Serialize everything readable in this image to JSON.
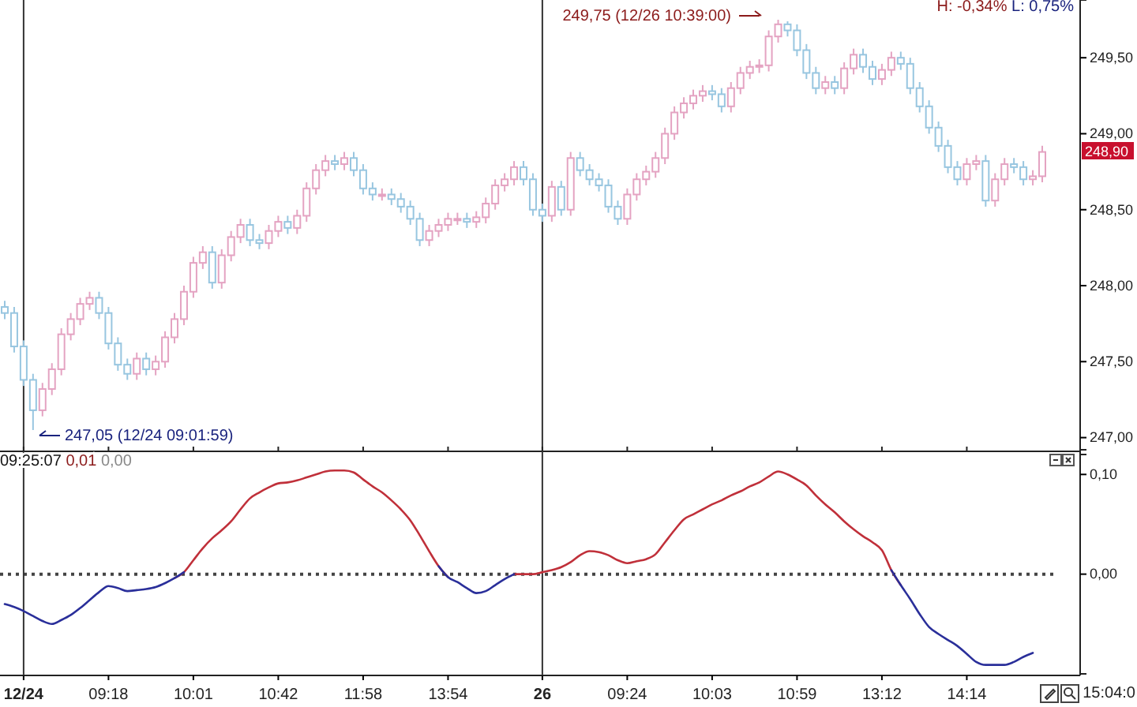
{
  "chart_data": [
    {
      "type": "candlestick",
      "categories": [
        null,
        null,
        "12/24",
        null,
        null,
        null,
        null,
        null,
        null,
        null,
        null,
        "09:18",
        null,
        null,
        null,
        null,
        null,
        null,
        null,
        null,
        "10:01",
        null,
        null,
        null,
        null,
        null,
        null,
        null,
        null,
        "10:42",
        null,
        null,
        null,
        null,
        null,
        null,
        null,
        null,
        "11:58",
        null,
        null,
        null,
        null,
        null,
        null,
        null,
        null,
        "13:54",
        null,
        null,
        null,
        null,
        null,
        null,
        null,
        null,
        null,
        "26",
        null,
        null,
        null,
        null,
        null,
        null,
        null,
        null,
        "09:24",
        null,
        null,
        null,
        null,
        null,
        null,
        null,
        null,
        "10:03",
        null,
        null,
        null,
        null,
        null,
        null,
        null,
        null,
        "10:59",
        null,
        null,
        null,
        null,
        null,
        null,
        null,
        null,
        "13:12",
        null,
        null,
        null,
        null,
        null,
        null,
        null,
        null,
        "14:14",
        null,
        null,
        null,
        null,
        null,
        null,
        null,
        null
      ],
      "ohlc": [
        [
          247.86,
          247.9,
          247.78,
          247.82
        ],
        [
          247.82,
          247.86,
          247.56,
          247.6
        ],
        [
          247.6,
          247.64,
          247.34,
          247.38
        ],
        [
          247.38,
          247.42,
          247.05,
          247.18
        ],
        [
          247.18,
          247.36,
          247.14,
          247.32
        ],
        [
          247.32,
          247.49,
          247.28,
          247.45
        ],
        [
          247.45,
          247.72,
          247.41,
          247.68
        ],
        [
          247.68,
          247.82,
          247.64,
          247.78
        ],
        [
          247.78,
          247.92,
          247.74,
          247.88
        ],
        [
          247.88,
          247.96,
          247.84,
          247.92
        ],
        [
          247.92,
          247.96,
          247.78,
          247.82
        ],
        [
          247.82,
          247.86,
          247.58,
          247.62
        ],
        [
          247.62,
          247.66,
          247.44,
          247.48
        ],
        [
          247.48,
          247.52,
          247.38,
          247.42
        ],
        [
          247.42,
          247.56,
          247.38,
          247.52
        ],
        [
          247.52,
          247.56,
          247.41,
          247.45
        ],
        [
          247.45,
          247.54,
          247.41,
          247.5
        ],
        [
          247.5,
          247.7,
          247.46,
          247.66
        ],
        [
          247.66,
          247.82,
          247.62,
          247.78
        ],
        [
          247.78,
          248.0,
          247.74,
          247.96
        ],
        [
          247.96,
          248.19,
          247.92,
          248.15
        ],
        [
          248.15,
          248.26,
          248.11,
          248.22
        ],
        [
          248.22,
          248.26,
          247.98,
          248.02
        ],
        [
          248.02,
          248.24,
          247.98,
          248.2
        ],
        [
          248.2,
          248.36,
          248.16,
          248.32
        ],
        [
          248.32,
          248.44,
          248.28,
          248.4
        ],
        [
          248.4,
          248.44,
          248.26,
          248.3
        ],
        [
          248.3,
          248.34,
          248.24,
          248.28
        ],
        [
          248.28,
          248.4,
          248.24,
          248.36
        ],
        [
          248.36,
          248.46,
          248.32,
          248.42
        ],
        [
          248.42,
          248.46,
          248.34,
          248.38
        ],
        [
          248.38,
          248.5,
          248.34,
          248.46
        ],
        [
          248.46,
          248.68,
          248.42,
          248.64
        ],
        [
          248.64,
          248.8,
          248.6,
          248.76
        ],
        [
          248.76,
          248.86,
          248.72,
          248.82
        ],
        [
          248.82,
          248.86,
          248.76,
          248.8
        ],
        [
          248.8,
          248.88,
          248.76,
          248.84
        ],
        [
          248.84,
          248.88,
          248.72,
          248.76
        ],
        [
          248.76,
          248.8,
          248.6,
          248.64
        ],
        [
          248.64,
          248.68,
          248.56,
          248.6
        ],
        [
          248.6,
          248.64,
          248.56,
          248.6
        ],
        [
          248.6,
          248.64,
          248.53,
          248.57
        ],
        [
          248.57,
          248.61,
          248.48,
          248.52
        ],
        [
          248.52,
          248.56,
          248.4,
          248.44
        ],
        [
          248.44,
          248.48,
          248.26,
          248.3
        ],
        [
          248.3,
          248.4,
          248.26,
          248.36
        ],
        [
          248.36,
          248.44,
          248.32,
          248.4
        ],
        [
          248.4,
          248.48,
          248.36,
          248.44
        ],
        [
          248.44,
          248.48,
          248.4,
          248.44
        ],
        [
          248.44,
          248.48,
          248.38,
          248.42
        ],
        [
          248.42,
          248.49,
          248.38,
          248.45
        ],
        [
          248.45,
          248.58,
          248.41,
          248.54
        ],
        [
          248.54,
          248.7,
          248.5,
          248.66
        ],
        [
          248.66,
          248.74,
          248.62,
          248.7
        ],
        [
          248.7,
          248.82,
          248.66,
          248.78
        ],
        [
          248.78,
          248.82,
          248.66,
          248.7
        ],
        [
          248.7,
          248.74,
          248.46,
          248.5
        ],
        [
          248.5,
          248.54,
          248.42,
          248.46
        ],
        [
          248.46,
          248.69,
          248.42,
          248.65
        ],
        [
          248.65,
          248.69,
          248.46,
          248.5
        ],
        [
          248.5,
          248.88,
          248.46,
          248.84
        ],
        [
          248.84,
          248.88,
          248.72,
          248.76
        ],
        [
          248.76,
          248.8,
          248.66,
          248.7
        ],
        [
          248.7,
          248.74,
          248.62,
          248.66
        ],
        [
          248.66,
          248.7,
          248.48,
          248.52
        ],
        [
          248.52,
          248.56,
          248.4,
          248.44
        ],
        [
          248.44,
          248.64,
          248.4,
          248.6
        ],
        [
          248.6,
          248.74,
          248.56,
          248.7
        ],
        [
          248.7,
          248.79,
          248.66,
          248.75
        ],
        [
          248.75,
          248.88,
          248.71,
          248.84
        ],
        [
          248.84,
          249.04,
          248.8,
          249.0
        ],
        [
          249.0,
          249.18,
          248.96,
          249.14
        ],
        [
          249.14,
          249.24,
          249.1,
          249.2
        ],
        [
          249.2,
          249.29,
          249.16,
          249.25
        ],
        [
          249.25,
          249.32,
          249.21,
          249.28
        ],
        [
          249.28,
          249.32,
          249.22,
          249.26
        ],
        [
          249.26,
          249.3,
          249.14,
          249.18
        ],
        [
          249.18,
          249.34,
          249.14,
          249.3
        ],
        [
          249.3,
          249.44,
          249.26,
          249.4
        ],
        [
          249.4,
          249.48,
          249.36,
          249.44
        ],
        [
          249.44,
          249.49,
          249.4,
          249.45
        ],
        [
          249.45,
          249.68,
          249.41,
          249.64
        ],
        [
          249.64,
          249.75,
          249.6,
          249.72
        ],
        [
          249.72,
          249.74,
          249.64,
          249.68
        ],
        [
          249.68,
          249.72,
          249.51,
          249.55
        ],
        [
          249.55,
          249.59,
          249.36,
          249.4
        ],
        [
          249.4,
          249.44,
          249.26,
          249.3
        ],
        [
          249.3,
          249.38,
          249.26,
          249.34
        ],
        [
          249.34,
          249.38,
          249.26,
          249.3
        ],
        [
          249.3,
          249.47,
          249.26,
          249.43
        ],
        [
          249.43,
          249.56,
          249.39,
          249.52
        ],
        [
          249.52,
          249.56,
          249.4,
          249.44
        ],
        [
          249.44,
          249.48,
          249.32,
          249.36
        ],
        [
          249.36,
          249.46,
          249.32,
          249.42
        ],
        [
          249.42,
          249.54,
          249.38,
          249.5
        ],
        [
          249.5,
          249.54,
          249.42,
          249.46
        ],
        [
          249.46,
          249.5,
          249.26,
          249.3
        ],
        [
          249.3,
          249.34,
          249.14,
          249.18
        ],
        [
          249.18,
          249.22,
          249.0,
          249.04
        ],
        [
          249.04,
          249.08,
          248.88,
          248.92
        ],
        [
          248.92,
          248.96,
          248.74,
          248.78
        ],
        [
          248.78,
          248.82,
          248.66,
          248.7
        ],
        [
          248.7,
          248.84,
          248.66,
          248.8
        ],
        [
          248.8,
          248.86,
          248.76,
          248.82
        ],
        [
          248.82,
          248.86,
          248.52,
          248.56
        ],
        [
          248.56,
          248.74,
          248.52,
          248.7
        ],
        [
          248.7,
          248.84,
          248.66,
          248.8
        ],
        [
          248.8,
          248.84,
          248.74,
          248.78
        ],
        [
          248.78,
          248.82,
          248.66,
          248.7
        ],
        [
          248.7,
          248.76,
          248.66,
          248.72
        ],
        [
          248.72,
          248.92,
          248.68,
          248.88
        ]
      ],
      "colors": [
        "#98c6e0",
        "#98c6e0",
        "#98c6e0",
        "#98c6e0",
        "#e4a3c2",
        "#e4a3c2",
        "#e4a3c2",
        "#e4a3c2",
        "#e4a3c2",
        "#e4a3c2",
        "#98c6e0",
        "#98c6e0",
        "#98c6e0",
        "#98c6e0",
        "#e4a3c2",
        "#98c6e0",
        "#e4a3c2",
        "#e4a3c2",
        "#e4a3c2",
        "#e4a3c2",
        "#e4a3c2",
        "#e4a3c2",
        "#98c6e0",
        "#e4a3c2",
        "#e4a3c2",
        "#e4a3c2",
        "#98c6e0",
        "#98c6e0",
        "#e4a3c2",
        "#e4a3c2",
        "#98c6e0",
        "#e4a3c2",
        "#e4a3c2",
        "#e4a3c2",
        "#e4a3c2",
        "#98c6e0",
        "#e4a3c2",
        "#98c6e0",
        "#98c6e0",
        "#98c6e0",
        "#e4a3c2",
        "#98c6e0",
        "#98c6e0",
        "#98c6e0",
        "#98c6e0",
        "#e4a3c2",
        "#e4a3c2",
        "#e4a3c2",
        "#e4a3c2",
        "#98c6e0",
        "#e4a3c2",
        "#e4a3c2",
        "#e4a3c2",
        "#e4a3c2",
        "#e4a3c2",
        "#98c6e0",
        "#98c6e0",
        "#98c6e0",
        "#e4a3c2",
        "#98c6e0",
        "#e4a3c2",
        "#98c6e0",
        "#98c6e0",
        "#98c6e0",
        "#98c6e0",
        "#98c6e0",
        "#e4a3c2",
        "#e4a3c2",
        "#e4a3c2",
        "#e4a3c2",
        "#e4a3c2",
        "#e4a3c2",
        "#e4a3c2",
        "#e4a3c2",
        "#e4a3c2",
        "#98c6e0",
        "#98c6e0",
        "#e4a3c2",
        "#e4a3c2",
        "#e4a3c2",
        "#e4a3c2",
        "#e4a3c2",
        "#e4a3c2",
        "#98c6e0",
        "#98c6e0",
        "#98c6e0",
        "#98c6e0",
        "#e4a3c2",
        "#98c6e0",
        "#e4a3c2",
        "#e4a3c2",
        "#98c6e0",
        "#98c6e0",
        "#e4a3c2",
        "#e4a3c2",
        "#98c6e0",
        "#98c6e0",
        "#98c6e0",
        "#98c6e0",
        "#98c6e0",
        "#98c6e0",
        "#98c6e0",
        "#e4a3c2",
        "#e4a3c2",
        "#98c6e0",
        "#e4a3c2",
        "#e4a3c2",
        "#98c6e0",
        "#98c6e0",
        "#e4a3c2",
        "#e4a3c2"
      ],
      "ylim": [
        246.92,
        249.88
      ],
      "yticks": [
        {
          "value": 247,
          "label": "247,00"
        },
        {
          "value": 247.5,
          "label": "247,50"
        },
        {
          "value": 248,
          "label": "248,00"
        },
        {
          "value": 248.5,
          "label": "248,50"
        },
        {
          "value": 249,
          "label": "249,00"
        },
        {
          "value": 249.5,
          "label": "249,50"
        }
      ],
      "tick_labels": "y",
      "grid": false,
      "ref_lines": [
        {
          "axis": "x",
          "value": "12/24",
          "color": "#333333"
        },
        {
          "axis": "x",
          "value": "26",
          "color": "#333333"
        }
      ],
      "annotations": [
        "H: -0,34%",
        "L: 0,75%",
        "249,75 (12/26 10:39:00)",
        "247,05 (12/24 09:01:59)",
        "248,90"
      ]
    },
    {
      "type": "line",
      "categories": [
        null,
        null,
        "12/24",
        null,
        null,
        null,
        null,
        null,
        null,
        null,
        null,
        "09:18",
        null,
        null,
        null,
        null,
        null,
        null,
        null,
        null,
        "10:01",
        null,
        null,
        null,
        null,
        null,
        null,
        null,
        null,
        "10:42",
        null,
        null,
        null,
        null,
        null,
        null,
        null,
        null,
        "11:58",
        null,
        null,
        null,
        null,
        null,
        null,
        null,
        null,
        "13:54",
        null,
        null,
        null,
        null,
        null,
        null,
        null,
        null,
        null,
        "26",
        null,
        null,
        null,
        null,
        null,
        null,
        null,
        null,
        "09:24",
        null,
        null,
        null,
        null,
        null,
        null,
        null,
        null,
        "10:03",
        null,
        null,
        null,
        null,
        null,
        null,
        null,
        null,
        "10:59",
        null,
        null,
        null,
        null,
        null,
        null,
        null,
        null,
        "13:12",
        null,
        null,
        null,
        null,
        null,
        null,
        null,
        null,
        "14:14",
        null,
        null,
        null,
        null,
        null,
        null,
        null,
        null
      ],
      "series": [
        {
          "color": "#c0303a",
          "values": [
            null,
            null,
            null,
            null,
            null,
            null,
            null,
            null,
            null,
            null,
            null,
            null,
            null,
            null,
            null,
            null,
            null,
            null,
            -0.004,
            0.002,
            0.014,
            0.026,
            0.036,
            0.044,
            0.053,
            0.065,
            0.076,
            0.082,
            0.087,
            0.091,
            0.092,
            0.094,
            0.097,
            0.1,
            0.103,
            0.104,
            0.104,
            0.102,
            0.095,
            0.088,
            0.082,
            0.074,
            0.065,
            0.054,
            0.039,
            0.023,
            0.008,
            -0.003,
            null,
            null,
            null,
            null,
            null,
            null,
            0.0,
            0.0,
            0.0,
            0.002,
            0.004,
            0.007,
            0.012,
            0.019,
            0.023,
            0.022,
            0.019,
            0.014,
            0.011,
            0.013,
            0.015,
            0.02,
            0.032,
            0.044,
            0.055,
            0.06,
            0.065,
            0.07,
            0.074,
            0.079,
            0.083,
            0.088,
            0.092,
            0.098,
            0.103,
            0.1,
            0.095,
            0.089,
            0.079,
            0.07,
            0.062,
            0.053,
            0.045,
            0.038,
            0.032,
            0.024,
            0.004,
            -0.011,
            null,
            null,
            null,
            null,
            null,
            null,
            null,
            null,
            null,
            null,
            null,
            null,
            null,
            null,
            null
          ]
        },
        {
          "color": "#2a2f9a",
          "values": [
            -0.03,
            -0.033,
            -0.037,
            -0.042,
            -0.047,
            -0.05,
            -0.046,
            -0.041,
            -0.034,
            -0.026,
            -0.018,
            -0.012,
            -0.014,
            -0.017,
            -0.016,
            -0.015,
            -0.013,
            -0.009,
            -0.004,
            0.002,
            null,
            null,
            null,
            null,
            null,
            null,
            null,
            null,
            null,
            null,
            null,
            null,
            null,
            null,
            null,
            null,
            null,
            null,
            null,
            null,
            null,
            null,
            null,
            null,
            null,
            null,
            0.008,
            -0.003,
            -0.008,
            -0.014,
            -0.019,
            -0.017,
            -0.011,
            -0.005,
            0.0,
            null,
            null,
            null,
            null,
            null,
            null,
            null,
            null,
            null,
            null,
            null,
            null,
            null,
            null,
            null,
            null,
            null,
            null,
            null,
            null,
            null,
            null,
            null,
            null,
            null,
            null,
            null,
            null,
            null,
            null,
            null,
            null,
            null,
            null,
            null,
            null,
            null,
            null,
            null,
            0.004,
            -0.011,
            -0.025,
            -0.04,
            -0.053,
            -0.06,
            -0.066,
            -0.072,
            -0.08,
            -0.088,
            -0.091,
            -0.091,
            -0.091,
            -0.088,
            -0.083,
            -0.079,
            null
          ]
        }
      ],
      "ylim": [
        -0.1,
        0.12
      ],
      "yticks": [
        {
          "value": 0,
          "label": "0,00"
        },
        {
          "value": 0.1,
          "label": "0,10"
        }
      ],
      "grid": false,
      "marker": "none",
      "line_style": "solid",
      "ref_lines": [
        {
          "axis": "y",
          "value": 0,
          "line_style": "dotted",
          "color": "#444444"
        },
        {
          "axis": "x",
          "value": "12/24",
          "color": "#333333"
        },
        {
          "axis": "x",
          "value": "26",
          "color": "#333333"
        }
      ],
      "annotations": [
        "09:25:07",
        "0,01",
        "0,00",
        "15:04:0"
      ]
    }
  ]
}
